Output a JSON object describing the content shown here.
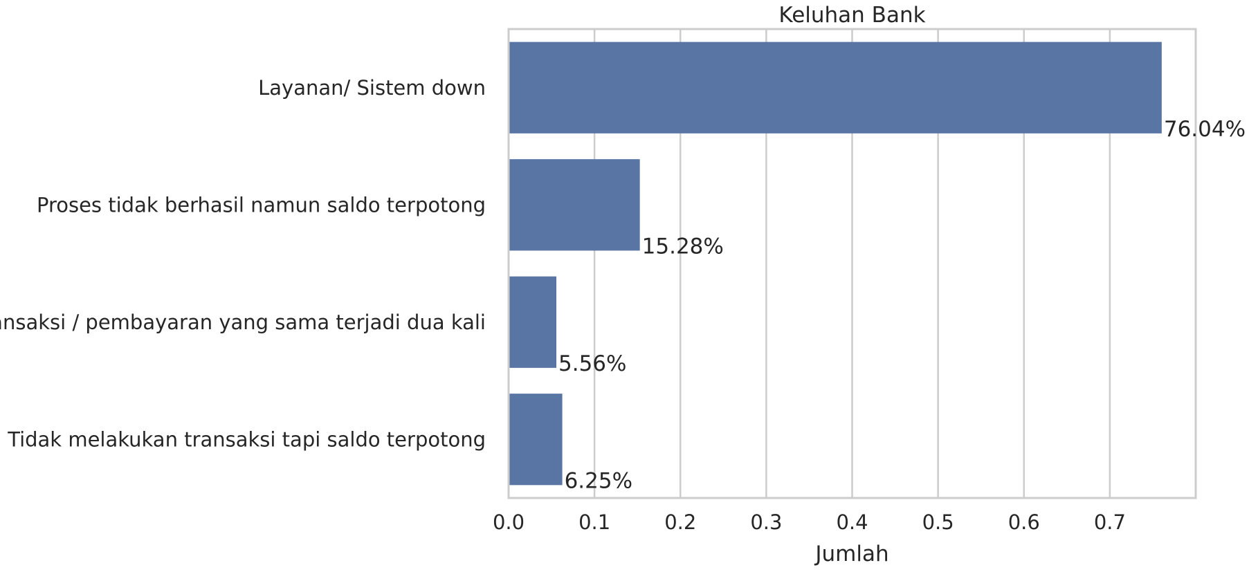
{
  "chart_data": {
    "type": "bar",
    "orientation": "horizontal",
    "title": "Keluhan Bank",
    "xlabel": "Jumlah",
    "ylabel": "",
    "categories": [
      "Layanan/ Sistem down",
      "Proses tidak berhasil namun saldo terpotong",
      "Transaksi / pembayaran yang sama terjadi dua kali",
      "Tidak melakukan transaksi tapi saldo terpotong"
    ],
    "values": [
      0.7604,
      0.1528,
      0.0556,
      0.0625
    ],
    "data_labels": [
      "76.04%",
      "15.28%",
      "5.56%",
      "6.25%"
    ],
    "xlim": [
      0,
      0.8
    ],
    "xticks": [
      0.0,
      0.1,
      0.2,
      0.3,
      0.4,
      0.5,
      0.6,
      0.7
    ],
    "xtick_labels": [
      "0.0",
      "0.1",
      "0.2",
      "0.3",
      "0.4",
      "0.5",
      "0.6",
      "0.7"
    ],
    "grid": "vertical",
    "bar_color": "#5975a4",
    "grid_color": "#cccccc"
  }
}
